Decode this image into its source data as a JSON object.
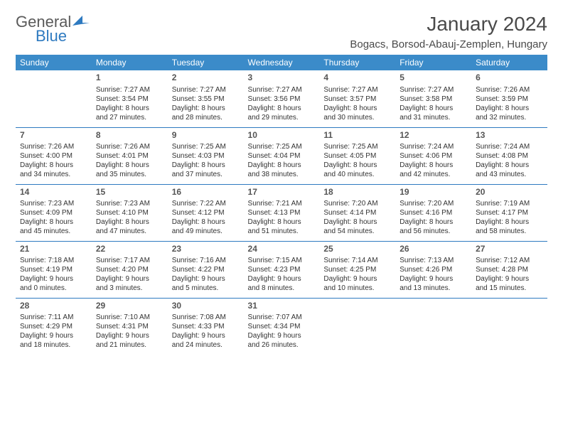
{
  "brand": {
    "general": "General",
    "blue": "Blue"
  },
  "title": "January 2024",
  "location": "Bogacs, Borsod-Abauj-Zemplen, Hungary",
  "header_bg": "#3b8bc9",
  "header_fg": "#ffffff",
  "sep_color": "#2e7ac0",
  "text_color": "#333333",
  "title_color": "#4a4a4a",
  "logo_gray": "#5a5a5a",
  "logo_blue": "#2e7ac0",
  "daynames": [
    "Sunday",
    "Monday",
    "Tuesday",
    "Wednesday",
    "Thursday",
    "Friday",
    "Saturday"
  ],
  "weeks": [
    [
      null,
      {
        "n": "1",
        "sr": "Sunrise: 7:27 AM",
        "ss": "Sunset: 3:54 PM",
        "d1": "Daylight: 8 hours",
        "d2": "and 27 minutes."
      },
      {
        "n": "2",
        "sr": "Sunrise: 7:27 AM",
        "ss": "Sunset: 3:55 PM",
        "d1": "Daylight: 8 hours",
        "d2": "and 28 minutes."
      },
      {
        "n": "3",
        "sr": "Sunrise: 7:27 AM",
        "ss": "Sunset: 3:56 PM",
        "d1": "Daylight: 8 hours",
        "d2": "and 29 minutes."
      },
      {
        "n": "4",
        "sr": "Sunrise: 7:27 AM",
        "ss": "Sunset: 3:57 PM",
        "d1": "Daylight: 8 hours",
        "d2": "and 30 minutes."
      },
      {
        "n": "5",
        "sr": "Sunrise: 7:27 AM",
        "ss": "Sunset: 3:58 PM",
        "d1": "Daylight: 8 hours",
        "d2": "and 31 minutes."
      },
      {
        "n": "6",
        "sr": "Sunrise: 7:26 AM",
        "ss": "Sunset: 3:59 PM",
        "d1": "Daylight: 8 hours",
        "d2": "and 32 minutes."
      }
    ],
    [
      {
        "n": "7",
        "sr": "Sunrise: 7:26 AM",
        "ss": "Sunset: 4:00 PM",
        "d1": "Daylight: 8 hours",
        "d2": "and 34 minutes."
      },
      {
        "n": "8",
        "sr": "Sunrise: 7:26 AM",
        "ss": "Sunset: 4:01 PM",
        "d1": "Daylight: 8 hours",
        "d2": "and 35 minutes."
      },
      {
        "n": "9",
        "sr": "Sunrise: 7:25 AM",
        "ss": "Sunset: 4:03 PM",
        "d1": "Daylight: 8 hours",
        "d2": "and 37 minutes."
      },
      {
        "n": "10",
        "sr": "Sunrise: 7:25 AM",
        "ss": "Sunset: 4:04 PM",
        "d1": "Daylight: 8 hours",
        "d2": "and 38 minutes."
      },
      {
        "n": "11",
        "sr": "Sunrise: 7:25 AM",
        "ss": "Sunset: 4:05 PM",
        "d1": "Daylight: 8 hours",
        "d2": "and 40 minutes."
      },
      {
        "n": "12",
        "sr": "Sunrise: 7:24 AM",
        "ss": "Sunset: 4:06 PM",
        "d1": "Daylight: 8 hours",
        "d2": "and 42 minutes."
      },
      {
        "n": "13",
        "sr": "Sunrise: 7:24 AM",
        "ss": "Sunset: 4:08 PM",
        "d1": "Daylight: 8 hours",
        "d2": "and 43 minutes."
      }
    ],
    [
      {
        "n": "14",
        "sr": "Sunrise: 7:23 AM",
        "ss": "Sunset: 4:09 PM",
        "d1": "Daylight: 8 hours",
        "d2": "and 45 minutes."
      },
      {
        "n": "15",
        "sr": "Sunrise: 7:23 AM",
        "ss": "Sunset: 4:10 PM",
        "d1": "Daylight: 8 hours",
        "d2": "and 47 minutes."
      },
      {
        "n": "16",
        "sr": "Sunrise: 7:22 AM",
        "ss": "Sunset: 4:12 PM",
        "d1": "Daylight: 8 hours",
        "d2": "and 49 minutes."
      },
      {
        "n": "17",
        "sr": "Sunrise: 7:21 AM",
        "ss": "Sunset: 4:13 PM",
        "d1": "Daylight: 8 hours",
        "d2": "and 51 minutes."
      },
      {
        "n": "18",
        "sr": "Sunrise: 7:20 AM",
        "ss": "Sunset: 4:14 PM",
        "d1": "Daylight: 8 hours",
        "d2": "and 54 minutes."
      },
      {
        "n": "19",
        "sr": "Sunrise: 7:20 AM",
        "ss": "Sunset: 4:16 PM",
        "d1": "Daylight: 8 hours",
        "d2": "and 56 minutes."
      },
      {
        "n": "20",
        "sr": "Sunrise: 7:19 AM",
        "ss": "Sunset: 4:17 PM",
        "d1": "Daylight: 8 hours",
        "d2": "and 58 minutes."
      }
    ],
    [
      {
        "n": "21",
        "sr": "Sunrise: 7:18 AM",
        "ss": "Sunset: 4:19 PM",
        "d1": "Daylight: 9 hours",
        "d2": "and 0 minutes."
      },
      {
        "n": "22",
        "sr": "Sunrise: 7:17 AM",
        "ss": "Sunset: 4:20 PM",
        "d1": "Daylight: 9 hours",
        "d2": "and 3 minutes."
      },
      {
        "n": "23",
        "sr": "Sunrise: 7:16 AM",
        "ss": "Sunset: 4:22 PM",
        "d1": "Daylight: 9 hours",
        "d2": "and 5 minutes."
      },
      {
        "n": "24",
        "sr": "Sunrise: 7:15 AM",
        "ss": "Sunset: 4:23 PM",
        "d1": "Daylight: 9 hours",
        "d2": "and 8 minutes."
      },
      {
        "n": "25",
        "sr": "Sunrise: 7:14 AM",
        "ss": "Sunset: 4:25 PM",
        "d1": "Daylight: 9 hours",
        "d2": "and 10 minutes."
      },
      {
        "n": "26",
        "sr": "Sunrise: 7:13 AM",
        "ss": "Sunset: 4:26 PM",
        "d1": "Daylight: 9 hours",
        "d2": "and 13 minutes."
      },
      {
        "n": "27",
        "sr": "Sunrise: 7:12 AM",
        "ss": "Sunset: 4:28 PM",
        "d1": "Daylight: 9 hours",
        "d2": "and 15 minutes."
      }
    ],
    [
      {
        "n": "28",
        "sr": "Sunrise: 7:11 AM",
        "ss": "Sunset: 4:29 PM",
        "d1": "Daylight: 9 hours",
        "d2": "and 18 minutes."
      },
      {
        "n": "29",
        "sr": "Sunrise: 7:10 AM",
        "ss": "Sunset: 4:31 PM",
        "d1": "Daylight: 9 hours",
        "d2": "and 21 minutes."
      },
      {
        "n": "30",
        "sr": "Sunrise: 7:08 AM",
        "ss": "Sunset: 4:33 PM",
        "d1": "Daylight: 9 hours",
        "d2": "and 24 minutes."
      },
      {
        "n": "31",
        "sr": "Sunrise: 7:07 AM",
        "ss": "Sunset: 4:34 PM",
        "d1": "Daylight: 9 hours",
        "d2": "and 26 minutes."
      },
      null,
      null,
      null
    ]
  ]
}
